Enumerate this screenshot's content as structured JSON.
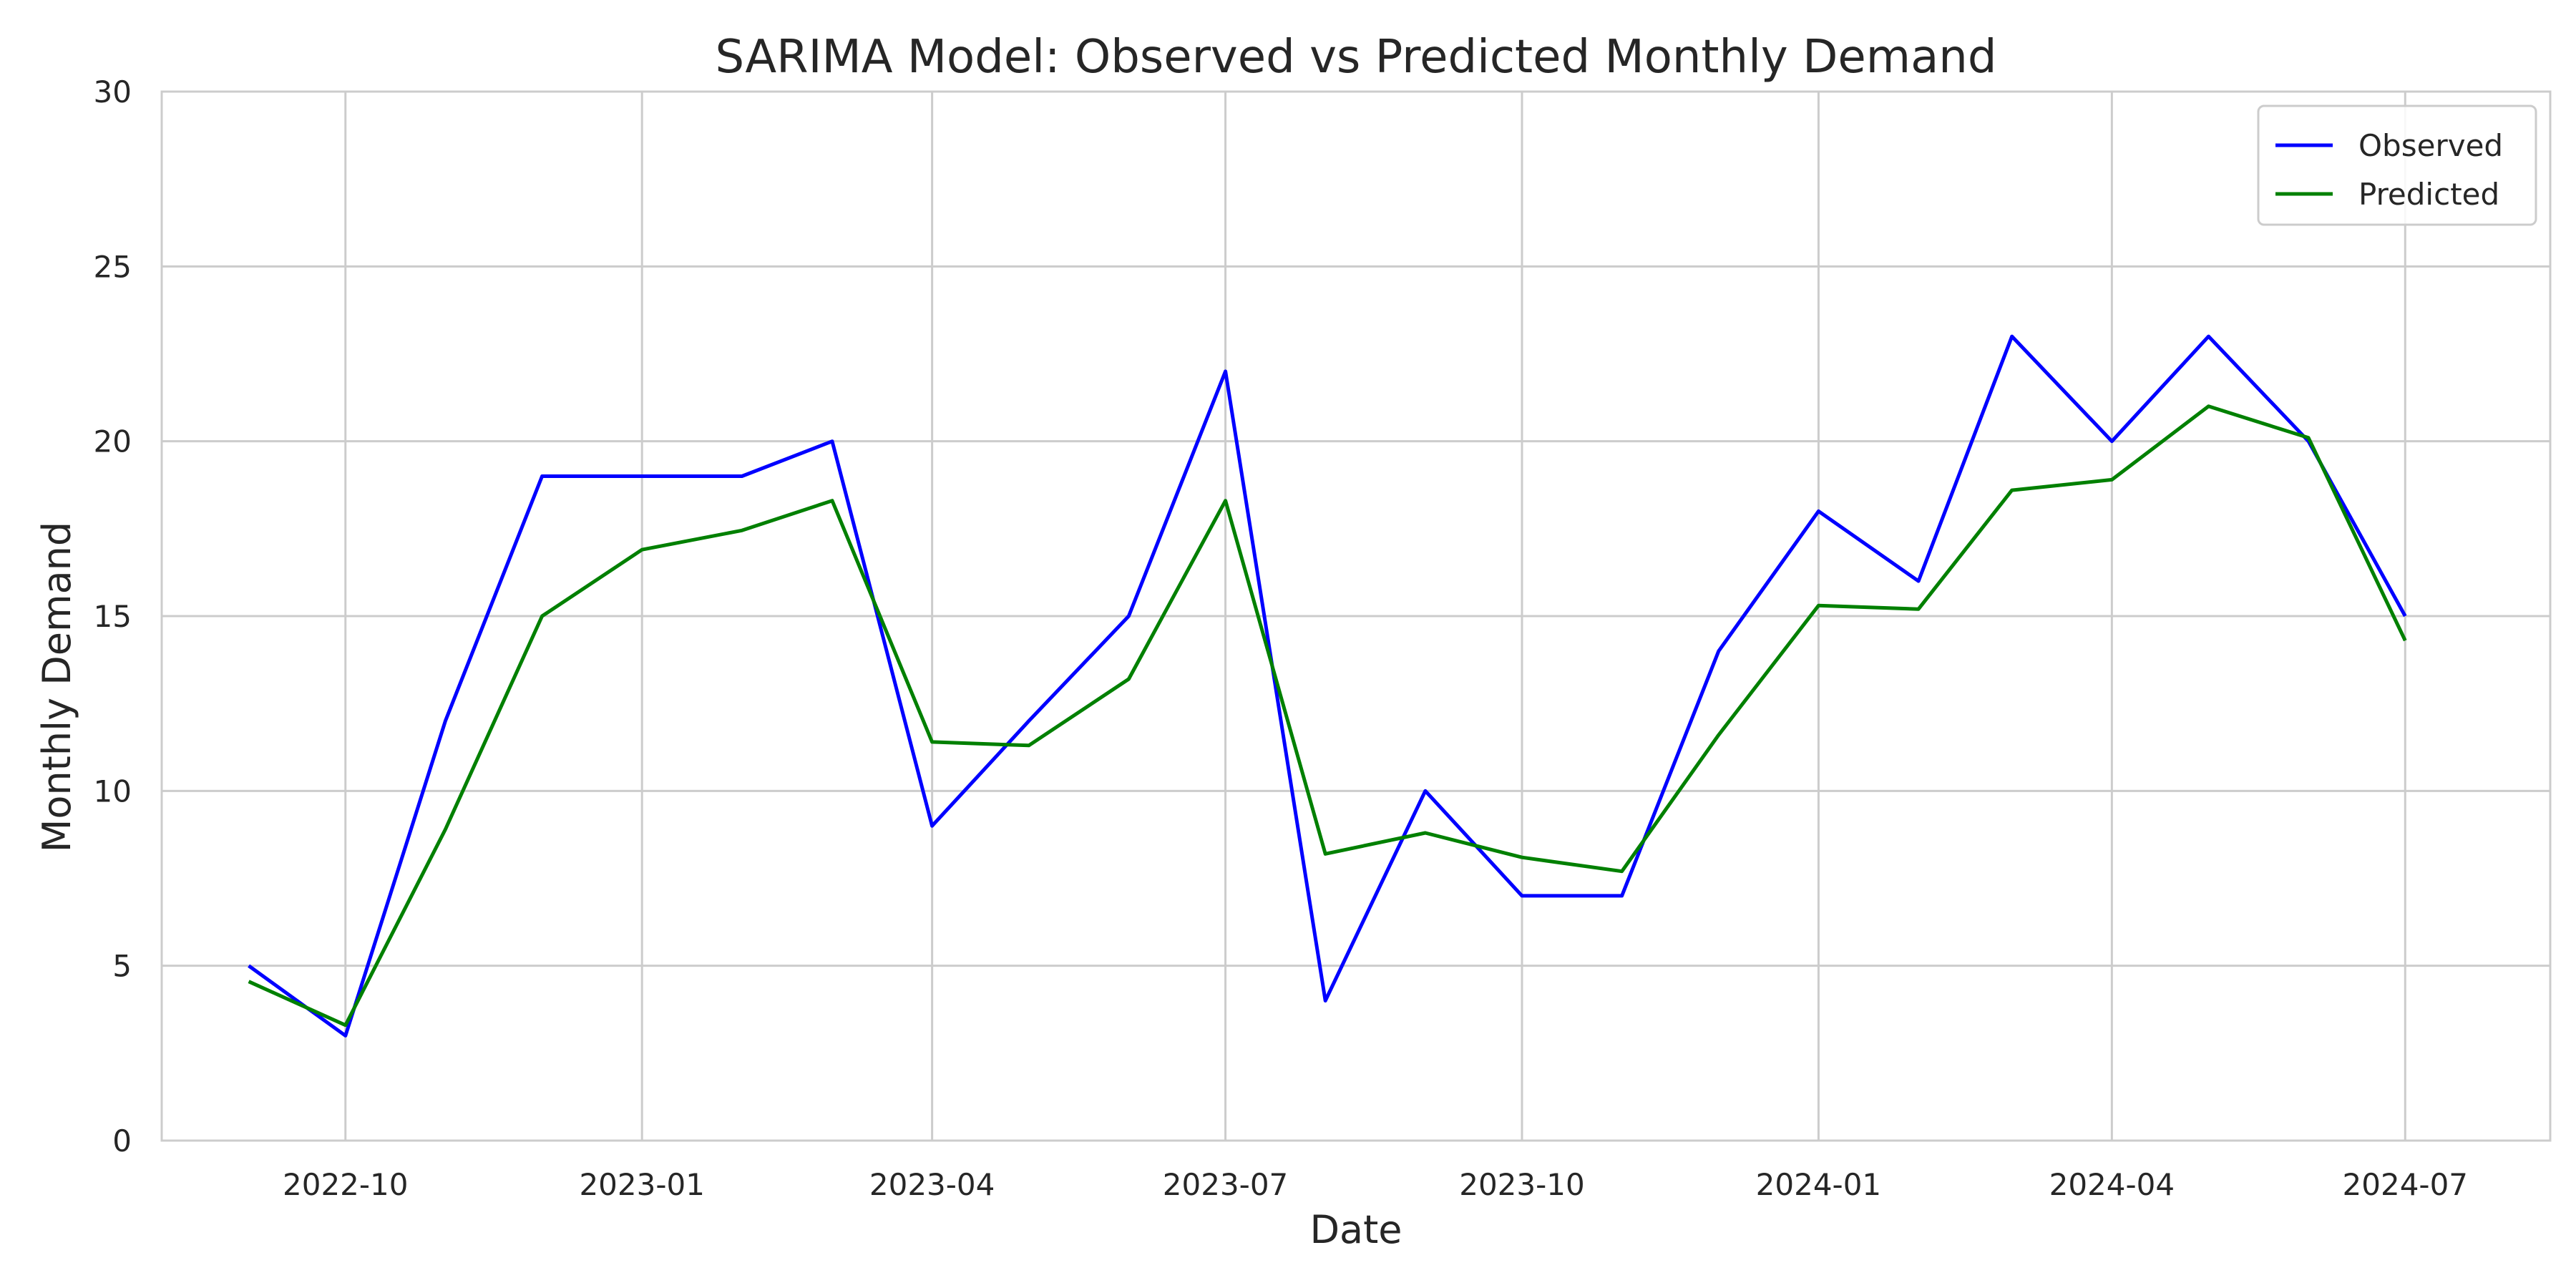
{
  "chart_data": {
    "type": "line",
    "title": "SARIMA Model: Observed vs Predicted Monthly Demand",
    "xlabel": "Date",
    "ylabel": "Monthly Demand",
    "x": [
      "2022-09",
      "2022-10",
      "2022-11",
      "2022-12",
      "2023-01",
      "2023-02",
      "2023-03",
      "2023-04",
      "2023-05",
      "2023-06",
      "2023-07",
      "2023-08",
      "2023-09",
      "2023-10",
      "2023-11",
      "2023-12",
      "2024-01",
      "2024-02",
      "2024-03",
      "2024-04",
      "2024-05",
      "2024-06",
      "2024-07"
    ],
    "series": [
      {
        "name": "Observed",
        "color": "#0000ff",
        "values": [
          5,
          3,
          12,
          19,
          19,
          19,
          20,
          9,
          12,
          15,
          22,
          4,
          10,
          7,
          7,
          14,
          18,
          16,
          23,
          20,
          23,
          20,
          15
        ]
      },
      {
        "name": "Predicted",
        "color": "#008000",
        "values": [
          4.55,
          3.3,
          8.9,
          15.0,
          16.9,
          17.45,
          18.3,
          11.4,
          11.3,
          13.2,
          18.3,
          8.2,
          8.8,
          8.1,
          7.7,
          11.6,
          15.3,
          15.2,
          18.6,
          18.9,
          21.0,
          20.1,
          14.3
        ]
      }
    ],
    "ylim": [
      0,
      30
    ],
    "yticks": [
      "0",
      "5",
      "10",
      "15",
      "20",
      "25",
      "30"
    ],
    "xticks": [
      "2022-10",
      "2023-01",
      "2023-04",
      "2023-07",
      "2023-10",
      "2024-01",
      "2024-04",
      "2024-07"
    ],
    "xlim": [
      "2022-08-05",
      "2024-08-15"
    ],
    "grid": true,
    "legend_position": "top-right"
  }
}
